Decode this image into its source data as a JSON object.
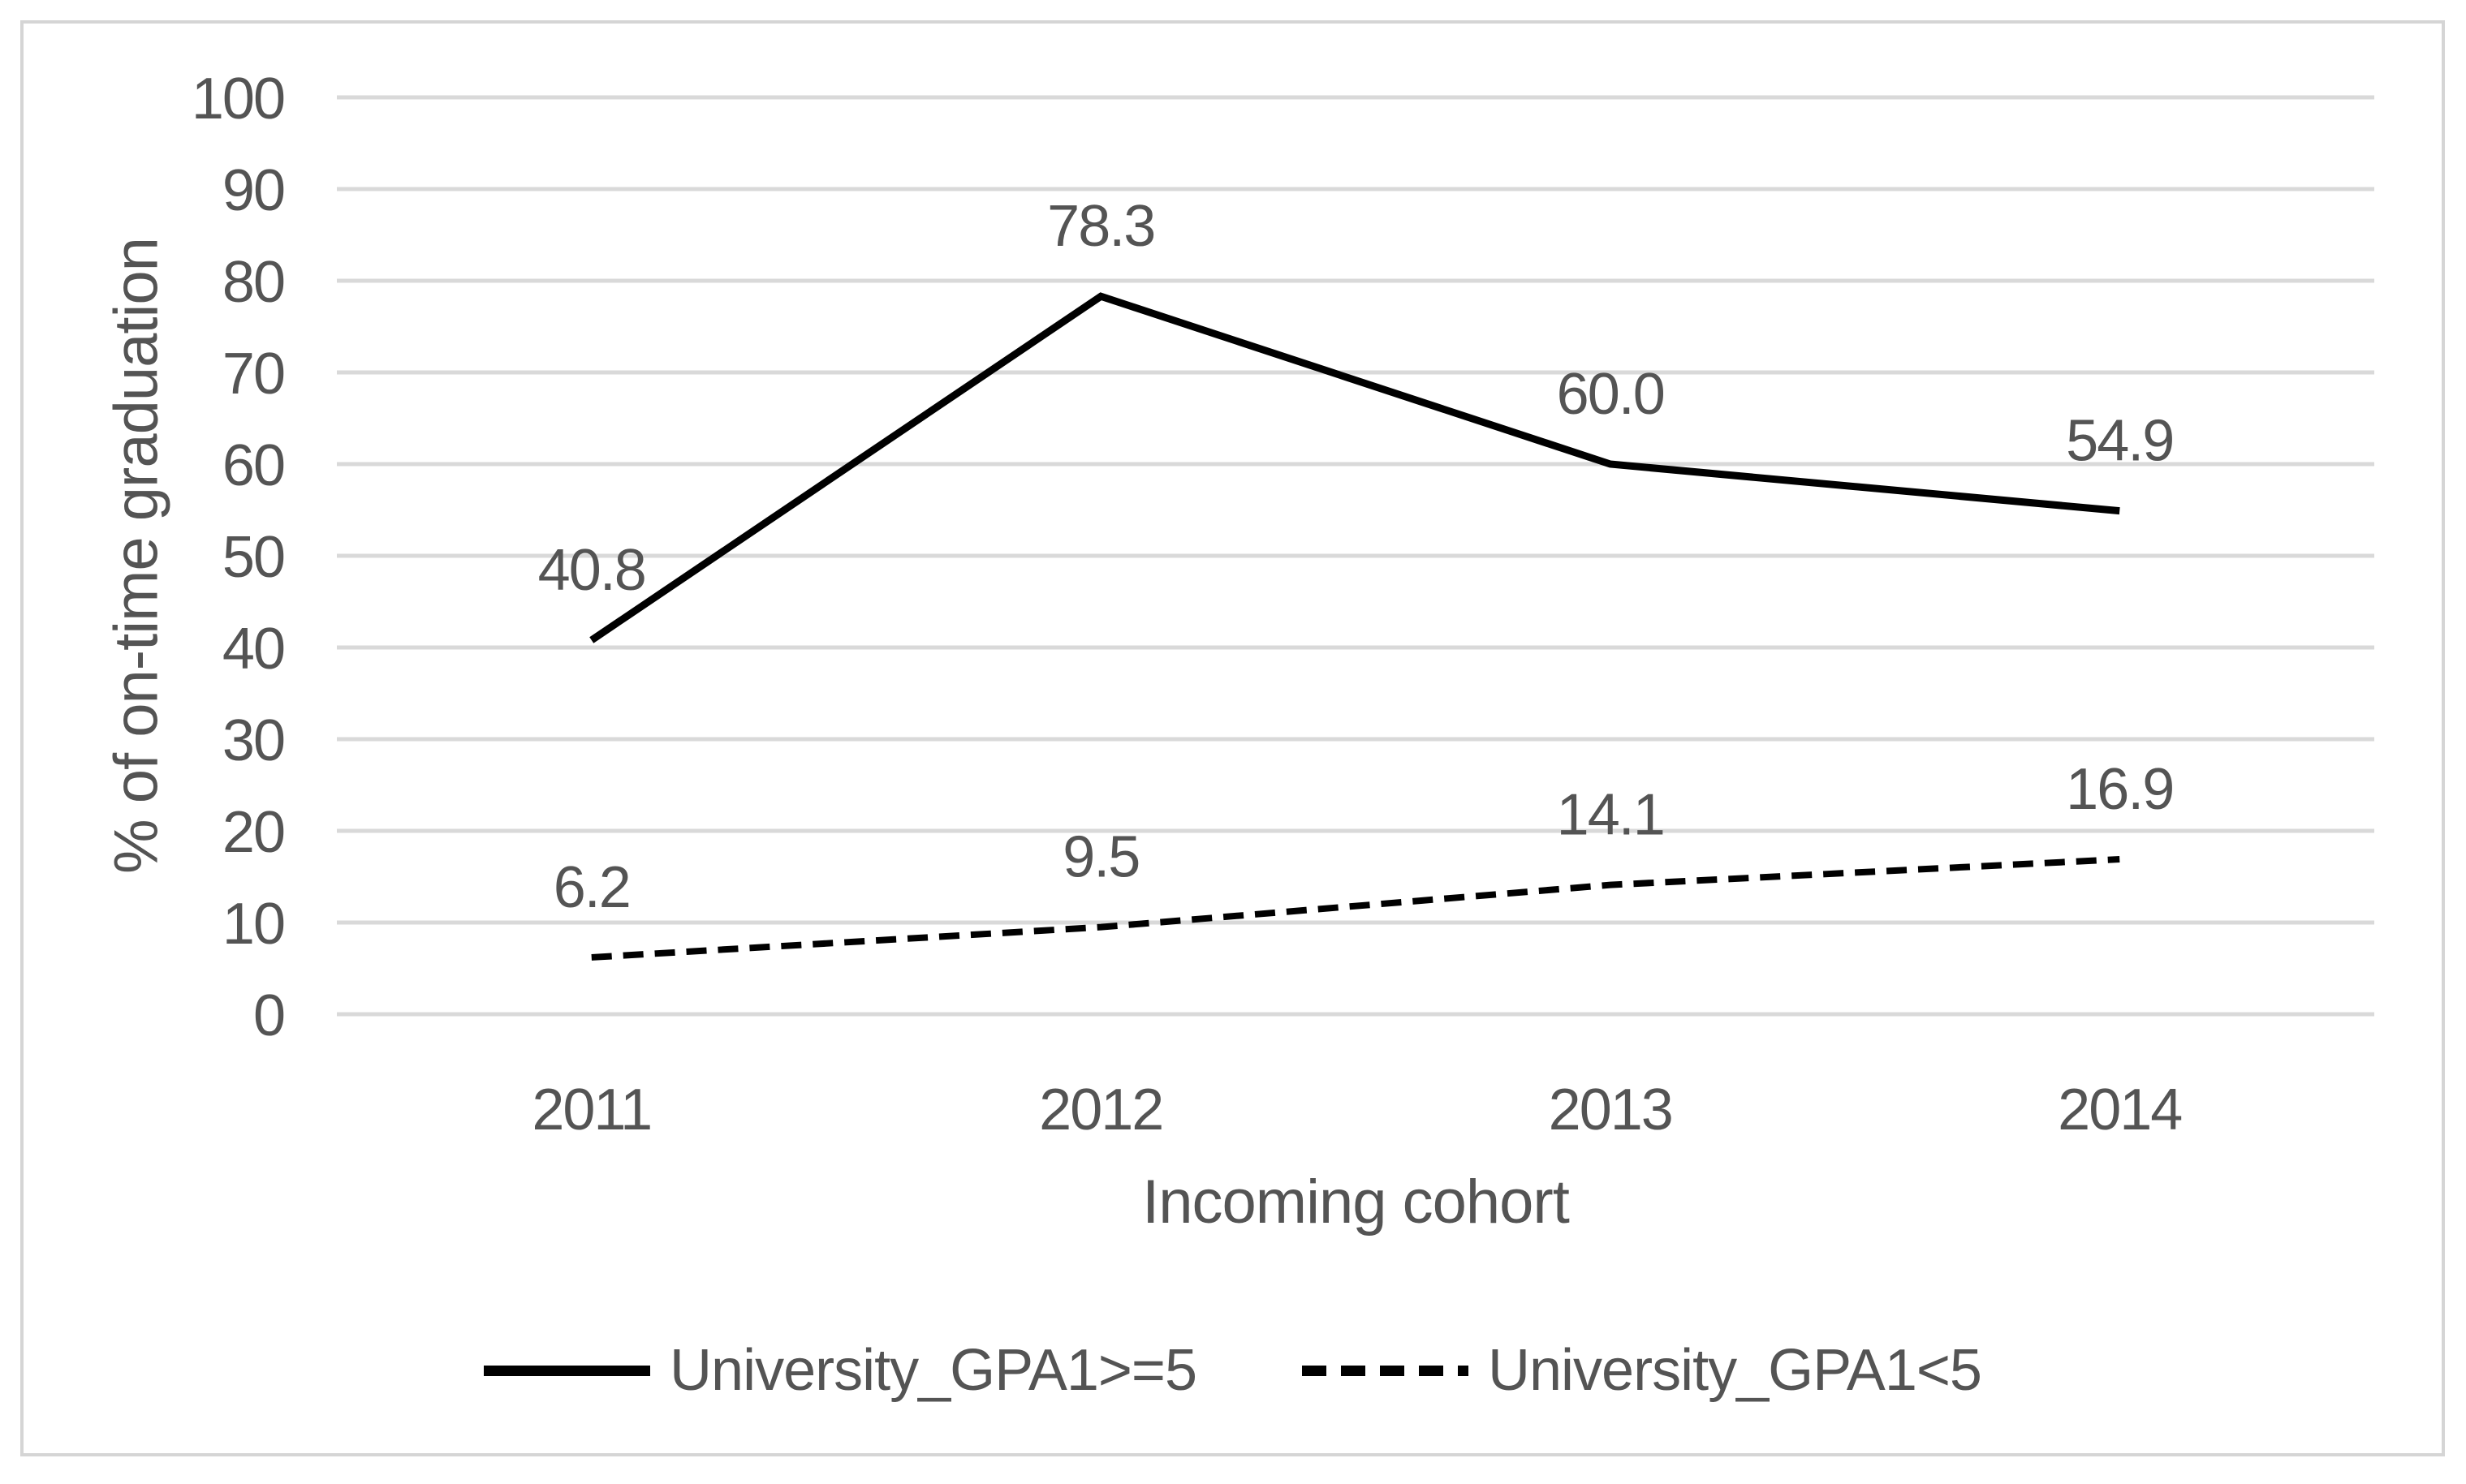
{
  "figure": {
    "border_color": "#d5d5d5",
    "background_color": "#ffffff"
  },
  "chart_data": {
    "type": "line",
    "title": "",
    "categories": [
      "2011",
      "2012",
      "2013",
      "2014"
    ],
    "series": [
      {
        "name": "University_GPA1>=5",
        "style": "solid",
        "values": [
          40.8,
          78.3,
          60.0,
          54.9
        ],
        "labels": [
          "40.8",
          "78.3",
          "60.0",
          "54.9"
        ]
      },
      {
        "name": "University_GPA1<5",
        "style": "dashed",
        "values": [
          6.2,
          9.5,
          14.1,
          16.9
        ],
        "labels": [
          "6.2",
          "9.5",
          "14.1",
          "16.9"
        ]
      }
    ],
    "xlabel": "Incoming cohort",
    "ylabel": "% of on-time graduation",
    "ylim": [
      0,
      100
    ],
    "ytick_step": 10,
    "yticks": [
      "0",
      "10",
      "20",
      "30",
      "40",
      "50",
      "60",
      "70",
      "80",
      "90",
      "100"
    ],
    "grid": "horizontal",
    "legend_position": "bottom",
    "line_color": "#000000",
    "gridline_color": "#d9d9d9",
    "text_color": "#545454",
    "data_label_position": "above"
  }
}
